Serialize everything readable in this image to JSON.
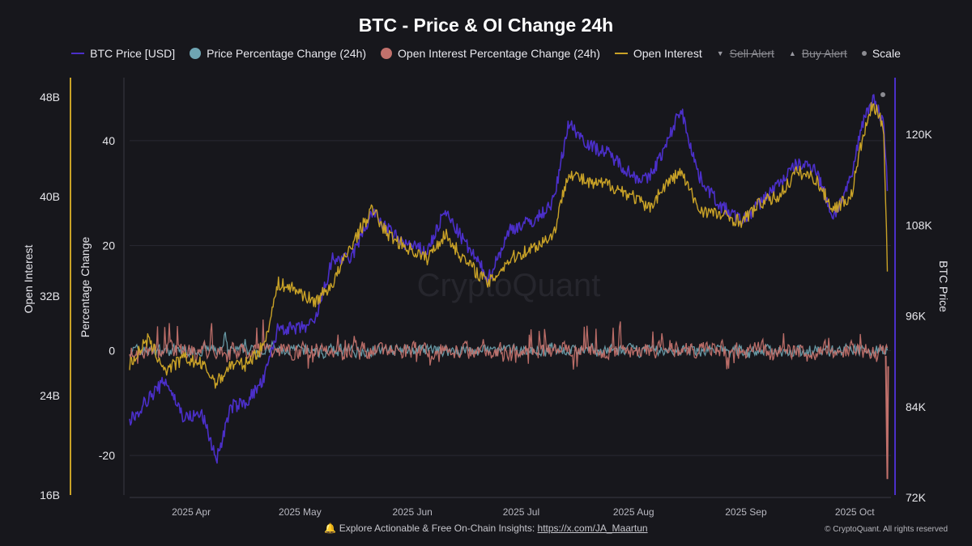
{
  "title": "BTC - Price & OI Change 24h",
  "legend": [
    {
      "id": "btc",
      "label": "BTC Price [USD]",
      "color": "#4b2fc9",
      "icon": "line-icon"
    },
    {
      "id": "ppc",
      "label": "Price Percentage Change (24h)",
      "color": "#6fa5b3",
      "icon": "circle-icon"
    },
    {
      "id": "oipc",
      "label": "Open Interest Percentage Change (24h)",
      "color": "#c2716c",
      "icon": "circle-icon"
    },
    {
      "id": "oi",
      "label": "Open Interest",
      "color": "#c9a227",
      "icon": "line-icon"
    },
    {
      "id": "sell",
      "label": "Sell Alert",
      "color": "#9a9aa2",
      "icon": "triangle-down-icon"
    },
    {
      "id": "buy",
      "label": "Buy Alert",
      "color": "#9a9aa2",
      "icon": "triangle-up-icon"
    },
    {
      "id": "scale",
      "label": "Scale",
      "color": "#8c8c92",
      "icon": "dot-icon"
    }
  ],
  "footer": {
    "bell": "🔔",
    "text": "Explore Actionable & Free On-Chain Insights:",
    "link": "https://x.com/JA_Maartun",
    "copyright": "© CryptoQuant. All rights reserved"
  },
  "watermark": "CryptoQuant",
  "chart_data": {
    "type": "line",
    "x_ticks": [
      "2025 Apr",
      "2025 May",
      "2025 Jun",
      "2025 Jul",
      "2025 Aug",
      "2025 Sep",
      "2025 Oct"
    ],
    "axes": {
      "open_interest": {
        "label": "Open Interest",
        "ticks": [
          "16B",
          "24B",
          "32B",
          "40B",
          "48B"
        ],
        "range": [
          16,
          48
        ],
        "color": "#c9a227"
      },
      "percentage_change": {
        "label": "Percentage Change",
        "ticks": [
          "-20",
          "0",
          "20",
          "40"
        ],
        "range": [
          -28,
          52
        ]
      },
      "btc_price": {
        "label": "BTC Price",
        "ticks": [
          "72K",
          "84K",
          "96K",
          "108K",
          "120K"
        ],
        "range": [
          72000,
          127500
        ],
        "color": "#4b2fc9"
      }
    },
    "series": [
      {
        "name": "BTC Price [USD]",
        "axis": "btc_price",
        "color": "#4b2fc9",
        "dates": [
          "2025-03-15",
          "2025-03-20",
          "2025-03-25",
          "2025-03-30",
          "2025-04-04",
          "2025-04-08",
          "2025-04-12",
          "2025-04-16",
          "2025-04-21",
          "2025-04-25",
          "2025-04-30",
          "2025-05-05",
          "2025-05-10",
          "2025-05-15",
          "2025-05-21",
          "2025-05-25",
          "2025-05-30",
          "2025-06-05",
          "2025-06-10",
          "2025-06-15",
          "2025-06-22",
          "2025-06-28",
          "2025-07-05",
          "2025-07-10",
          "2025-07-14",
          "2025-07-20",
          "2025-07-25",
          "2025-08-01",
          "2025-08-05",
          "2025-08-10",
          "2025-08-14",
          "2025-08-19",
          "2025-08-25",
          "2025-08-31",
          "2025-09-05",
          "2025-09-10",
          "2025-09-15",
          "2025-09-20",
          "2025-09-25",
          "2025-09-30",
          "2025-10-03",
          "2025-10-06",
          "2025-10-09",
          "2025-10-10"
        ],
        "values": [
          82000,
          85000,
          87500,
          82500,
          83000,
          77000,
          84000,
          84500,
          87500,
          94500,
          94200,
          95000,
          103500,
          103500,
          109800,
          107500,
          105500,
          104500,
          109800,
          106000,
          101000,
          107500,
          108700,
          111200,
          121500,
          118500,
          117500,
          114500,
          114000,
          118500,
          123500,
          114500,
          110500,
          108500,
          111000,
          113500,
          116000,
          115800,
          109000,
          114000,
          121500,
          124800,
          121500,
          113000
        ]
      },
      {
        "name": "Open Interest",
        "axis": "open_interest",
        "color": "#c9a227",
        "dates": [
          "2025-03-15",
          "2025-03-20",
          "2025-03-25",
          "2025-03-30",
          "2025-04-04",
          "2025-04-08",
          "2025-04-12",
          "2025-04-16",
          "2025-04-21",
          "2025-04-25",
          "2025-04-30",
          "2025-05-05",
          "2025-05-10",
          "2025-05-15",
          "2025-05-21",
          "2025-05-25",
          "2025-05-30",
          "2025-06-05",
          "2025-06-10",
          "2025-06-15",
          "2025-06-22",
          "2025-06-28",
          "2025-07-05",
          "2025-07-10",
          "2025-07-14",
          "2025-07-20",
          "2025-07-25",
          "2025-08-01",
          "2025-08-05",
          "2025-08-10",
          "2025-08-14",
          "2025-08-19",
          "2025-08-25",
          "2025-08-31",
          "2025-09-05",
          "2025-09-10",
          "2025-09-15",
          "2025-09-20",
          "2025-09-25",
          "2025-09-30",
          "2025-10-03",
          "2025-10-06",
          "2025-10-09",
          "2025-10-10"
        ],
        "values": [
          26.5,
          28.5,
          26,
          27,
          26.5,
          25,
          26.5,
          26.5,
          28,
          33,
          32.5,
          31.5,
          33,
          36,
          39,
          37,
          36,
          35,
          37,
          35,
          33,
          35,
          36,
          37,
          42,
          41,
          41,
          40,
          39,
          41,
          42,
          39,
          38.5,
          38,
          39.5,
          40,
          42,
          41.5,
          39,
          40,
          44.5,
          47.5,
          45.5,
          34.5
        ]
      },
      {
        "name": "Price Percentage Change (24h)",
        "axis": "percentage_change",
        "color": "#6fa5b3",
        "dates": [
          "2025-03-15",
          "2025-03-25",
          "2025-04-03",
          "2025-04-07",
          "2025-04-09",
          "2025-04-22",
          "2025-05-08",
          "2025-05-23",
          "2025-06-05",
          "2025-06-22",
          "2025-07-10",
          "2025-07-14",
          "2025-08-01",
          "2025-08-13",
          "2025-08-25",
          "2025-09-25",
          "2025-10-02",
          "2025-10-10"
        ],
        "values": [
          0,
          1,
          -3,
          -4,
          6,
          3,
          4,
          -2,
          -2.5,
          -2,
          3,
          2,
          -2,
          2,
          -3,
          -3,
          2.5,
          -6
        ]
      },
      {
        "name": "Open Interest Percentage Change (24h)",
        "axis": "percentage_change",
        "color": "#c2716c",
        "dates": [
          "2025-03-18",
          "2025-03-31",
          "2025-04-02",
          "2025-04-07",
          "2025-04-09",
          "2025-04-12",
          "2025-04-23",
          "2025-05-03",
          "2025-05-10",
          "2025-05-20",
          "2025-06-02",
          "2025-06-05",
          "2025-06-22",
          "2025-07-11",
          "2025-08-07",
          "2025-08-26",
          "2025-09-09",
          "2025-09-28",
          "2025-10-05",
          "2025-10-10"
        ],
        "values": [
          8,
          12,
          -6,
          10,
          -5,
          -4,
          17,
          -9,
          6,
          5,
          -6,
          -7,
          5,
          11,
          8,
          -8,
          7,
          5,
          9,
          -25
        ]
      }
    ]
  }
}
